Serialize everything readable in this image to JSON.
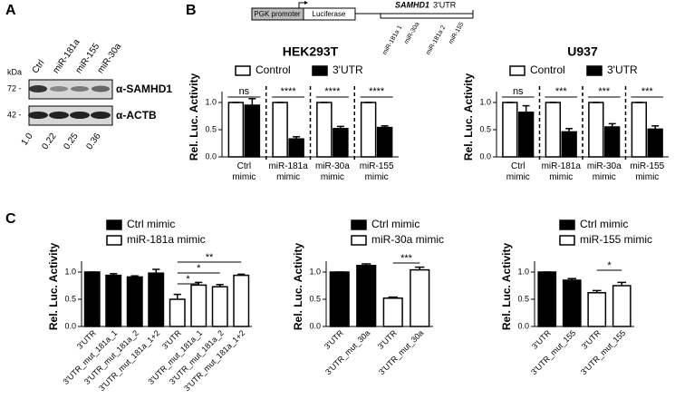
{
  "panel_labels": [
    "A",
    "B",
    "C"
  ],
  "blot": {
    "kda_label": "kDa",
    "lanes": [
      "Ctrl",
      "miR-181a",
      "miR-155",
      "miR-30a"
    ],
    "markers": [
      "72 -",
      "42 -"
    ],
    "antibodies": [
      "α-SAMHD1",
      "α-ACTB"
    ],
    "quantification": [
      "1.0",
      "0.22",
      "0.25",
      "0.36"
    ]
  },
  "construct": {
    "promoter": "PGK promoter",
    "reporter": "Luciferase",
    "utr_gene": "SAMHD1",
    "utr_suffix": "3'UTR",
    "sites": [
      "miR-181a 1",
      "miR-30a",
      "miR-181a 2",
      "miR-155"
    ]
  },
  "chart_data": [
    {
      "type": "bar",
      "title": "HEK293T",
      "ylabel": "Rel. Luc. Activity",
      "categories": [
        "Ctrl mimic",
        "miR-181a mimic",
        "miR-30a mimic",
        "miR-155 mimic"
      ],
      "series": [
        {
          "name": "Control",
          "color": "#ffffff",
          "values": [
            1,
            1,
            1,
            1
          ],
          "errors": [
            0,
            0,
            0,
            0
          ]
        },
        {
          "name": "3'UTR",
          "color": "#000000",
          "values": [
            0.95,
            0.33,
            0.52,
            0.54
          ],
          "errors": [
            0.12,
            0.04,
            0.04,
            0.03
          ]
        }
      ],
      "significance": [
        "ns",
        "****",
        "****",
        "****"
      ],
      "ylim": [
        0,
        1.2
      ],
      "yticks": [
        {
          "value": 0,
          "label": "0.0"
        },
        0.5,
        {
          "value": 1,
          "label": "1.0"
        }
      ]
    },
    {
      "type": "bar",
      "title": "U937",
      "ylabel": "Rel. Luc. Activity",
      "categories": [
        "Ctrl mimic",
        "miR-181a mimic",
        "miR-30a mimic",
        "miR-155 mimic"
      ],
      "series": [
        {
          "name": "Control",
          "color": "#ffffff",
          "values": [
            1,
            1,
            1,
            1
          ],
          "errors": [
            0,
            0,
            0,
            0
          ]
        },
        {
          "name": "3'UTR",
          "color": "#000000",
          "values": [
            0.82,
            0.46,
            0.55,
            0.51
          ],
          "errors": [
            0.12,
            0.06,
            0.06,
            0.06
          ]
        }
      ],
      "significance": [
        "ns",
        "***",
        "***",
        "***"
      ],
      "ylim": [
        0,
        1.2
      ],
      "yticks": [
        {
          "value": 0,
          "label": "0.0"
        },
        0.5,
        {
          "value": 1,
          "label": "1.0"
        }
      ]
    },
    {
      "type": "bar",
      "ylabel": "Rel. Luc. Activity",
      "categories": [
        "3'UTR",
        "3'UTR_mut_181a_1",
        "3'UTR_mut_181a_2",
        "3'UTR_mut_181a_1+2",
        "3'UTR",
        "3'UTR_mut_181a_1",
        "3'UTR_mut_181a_2",
        "3'UTR_mut_181a_1+2"
      ],
      "series": [
        {
          "name": "Ctrl mimic",
          "color": "#000000",
          "values": [
            1,
            0.94,
            0.91,
            0.98,
            null,
            null,
            null,
            null
          ],
          "errors": [
            0,
            0.03,
            0.02,
            0.07,
            null,
            null,
            null,
            null
          ]
        },
        {
          "name": "miR-181a mimic",
          "color": "#ffffff",
          "values": [
            null,
            null,
            null,
            null,
            0.5,
            0.76,
            0.73,
            0.94
          ],
          "errors": [
            null,
            null,
            null,
            null,
            0.09,
            0.05,
            0.04,
            0.02
          ]
        }
      ],
      "brackets": [
        {
          "from": 4,
          "to": 5,
          "label": "*"
        },
        {
          "from": 4,
          "to": 6,
          "label": "*"
        },
        {
          "from": 4,
          "to": 7,
          "label": "**"
        }
      ],
      "ylim": [
        0,
        1.2
      ],
      "yticks": [
        {
          "value": 0,
          "label": "0.0"
        },
        0.5,
        {
          "value": 1,
          "label": "1.0"
        }
      ]
    },
    {
      "type": "bar",
      "ylabel": "Rel. Luc. Activity",
      "categories": [
        "3'UTR",
        "3'UTR_mut_30a",
        "3'UTR",
        "3'UTR_mut_30a"
      ],
      "series": [
        {
          "name": "Ctrl mimic",
          "color": "#000000",
          "values": [
            1,
            1.12,
            null,
            null
          ],
          "errors": [
            0,
            0.03,
            null,
            null
          ]
        },
        {
          "name": "miR-30a mimic",
          "color": "#ffffff",
          "values": [
            null,
            null,
            0.52,
            1.04
          ],
          "errors": [
            null,
            null,
            0.02,
            0.05
          ]
        }
      ],
      "brackets": [
        {
          "from": 2,
          "to": 3,
          "label": "***"
        }
      ],
      "ylim": [
        0,
        1.2
      ],
      "yticks": [
        {
          "value": 0,
          "label": "0.0"
        },
        0.5,
        {
          "value": 1,
          "label": "1.0"
        }
      ]
    },
    {
      "type": "bar",
      "ylabel": "Rel. Luc. Activity",
      "categories": [
        "3'UTR",
        "3'UTR_mut_155",
        "3'UTR",
        "3'UTR_mut_155"
      ],
      "series": [
        {
          "name": "Ctrl mimic",
          "color": "#000000",
          "values": [
            1,
            0.85,
            null,
            null
          ],
          "errors": [
            0,
            0.03,
            null,
            null
          ]
        },
        {
          "name": "miR-155 mimic",
          "color": "#ffffff",
          "values": [
            null,
            null,
            0.62,
            0.75
          ],
          "errors": [
            null,
            null,
            0.04,
            0.06
          ]
        }
      ],
      "brackets": [
        {
          "from": 2,
          "to": 3,
          "label": "*"
        }
      ],
      "ylim": [
        0,
        1.2
      ],
      "yticks": [
        {
          "value": 0,
          "label": "0.0"
        },
        0.5,
        {
          "value": 1,
          "label": "1.0"
        }
      ]
    }
  ]
}
